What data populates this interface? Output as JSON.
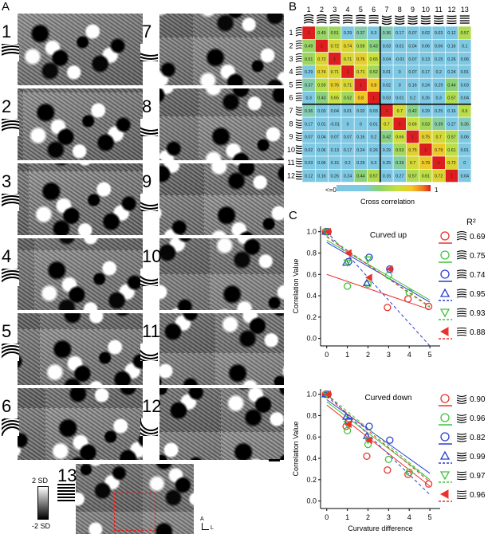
{
  "panel_labels": {
    "a": "A",
    "b": "B",
    "c": "C"
  },
  "maps": [
    {
      "n": "1"
    },
    {
      "n": "2"
    },
    {
      "n": "3"
    },
    {
      "n": "4"
    },
    {
      "n": "5"
    },
    {
      "n": "6"
    },
    {
      "n": "7"
    },
    {
      "n": "8"
    },
    {
      "n": "9"
    },
    {
      "n": "10"
    },
    {
      "n": "11"
    },
    {
      "n": "12"
    },
    {
      "n": "13"
    }
  ],
  "scale_bar": {
    "top": "2 SD",
    "bottom": "-2 SD"
  },
  "orientation": {
    "a": "A",
    "l": "L"
  },
  "matrix": {
    "col_labels": [
      "1",
      "2",
      "3",
      "4",
      "5",
      "6",
      "7",
      "8",
      "9",
      "10",
      "11",
      "12",
      "13"
    ],
    "row_labels": [
      "1",
      "2",
      "3",
      "4",
      "5",
      "6",
      "7",
      "8",
      "9",
      "10",
      "11",
      "12"
    ],
    "values": [
      [
        "1",
        "0.49",
        "0.51",
        "0.29",
        "0.37",
        "0.3",
        "0.36",
        "0.17",
        "0.07",
        "0.02",
        "0.03",
        "0.12",
        "0.57"
      ],
      [
        "0.49",
        "1",
        "0.72",
        "0.74",
        "0.59",
        "0.43",
        "0.03",
        "0.01",
        "0.04",
        "0.06",
        "0.06",
        "0.16",
        "0.1"
      ],
      [
        "0.51",
        "0.72",
        "1",
        "0.71",
        "0.76",
        "0.65",
        "0.04",
        "-0.01",
        "0.07",
        "0.13",
        "0.15",
        "0.26",
        "0.06"
      ],
      [
        "0.29",
        "0.74",
        "0.71",
        "1",
        "0.71",
        "0.52",
        "0.01",
        "0",
        "0.07",
        "0.17",
        "0.2",
        "0.24",
        "0.01"
      ],
      [
        "0.37",
        "0.59",
        "0.76",
        "0.71",
        "1",
        "0.8",
        "0.02",
        "0",
        "0.16",
        "0.24",
        "0.29",
        "0.44",
        "0.03"
      ],
      [
        "0.3",
        "0.43",
        "0.65",
        "0.52",
        "0.8",
        "1",
        "0.03",
        "0.01",
        "0.2",
        "0.26",
        "0.3",
        "0.57",
        "0.04"
      ],
      [
        "0.36",
        "0.03",
        "0.04",
        "0.01",
        "0.02",
        "0.03",
        "1",
        "0.7",
        "0.42",
        "0.29",
        "0.25",
        "0.16",
        "0.6"
      ],
      [
        "0.17",
        "0.01",
        "-0.01",
        "0",
        "0",
        "0.01",
        "0.7",
        "1",
        "0.66",
        "0.53",
        "0.39",
        "0.27",
        "0.35"
      ],
      [
        "0.07",
        "0.04",
        "0.07",
        "0.07",
        "0.16",
        "0.2",
        "0.42",
        "0.66",
        "1",
        "0.75",
        "0.7",
        "0.57",
        "0.06"
      ],
      [
        "0.02",
        "0.06",
        "0.13",
        "0.17",
        "0.24",
        "0.26",
        "0.29",
        "0.53",
        "0.75",
        "1",
        "0.79",
        "0.61",
        "0.01"
      ],
      [
        "0.03",
        "0.06",
        "0.15",
        "0.2",
        "0.29",
        "0.3",
        "0.25",
        "0.39",
        "0.7",
        "0.79",
        "1",
        "0.72",
        "0"
      ],
      [
        "0.12",
        "0.16",
        "0.26",
        "0.24",
        "0.44",
        "0.57",
        "0.16",
        "0.27",
        "0.57",
        "0.61",
        "0.72",
        "1",
        "0.04"
      ]
    ],
    "colorbar_min": "<=0",
    "colorbar_max": "1",
    "colorbar_label": "Cross correlation"
  },
  "chart_data": [
    {
      "type": "scatter",
      "title": "Curved up",
      "xlabel": "",
      "ylabel": "Correlation Value",
      "xlim": [
        -0.3,
        5.5
      ],
      "ylim": [
        -0.07,
        1.05
      ],
      "xticks": [
        "0",
        "1",
        "2",
        "3",
        "4",
        "5"
      ],
      "yticks": [
        "0.0",
        "0.2",
        "0.4",
        "0.6",
        "0.8",
        "1.0"
      ],
      "r2_header": "R²",
      "series": [
        {
          "color": "#e8332a",
          "marker": "circle",
          "r2": "0.69",
          "points": [
            [
              0,
              1.0
            ],
            [
              3,
              0.29
            ],
            [
              4,
              0.37
            ],
            [
              5,
              0.3
            ]
          ],
          "fit": [
            [
              0,
              0.6
            ],
            [
              5,
              0.27
            ]
          ],
          "dash": false
        },
        {
          "color": "#3ec43a",
          "marker": "circle",
          "r2": "0.75",
          "points": [
            [
              0,
              1.0
            ],
            [
              1,
              0.49
            ],
            [
              2,
              0.51
            ],
            [
              3,
              0.59
            ],
            [
              4,
              0.43
            ]
          ],
          "fit": [
            [
              0,
              0.92
            ],
            [
              5,
              0.36
            ]
          ],
          "dash": false
        },
        {
          "color": "#2a3fd0",
          "marker": "circle",
          "r2": "0.74",
          "points": [
            [
              0,
              1.0
            ],
            [
              1,
              0.72
            ],
            [
              2,
              0.76
            ],
            [
              3,
              0.65
            ]
          ],
          "fit": [
            [
              0,
              0.9
            ],
            [
              5,
              0.34
            ]
          ],
          "dash": false
        },
        {
          "color": "#2a3fd0",
          "marker": "triangle-up",
          "r2": "0.95",
          "points": [
            [
              0,
              1.0
            ],
            [
              1,
              0.71
            ],
            [
              2,
              0.52
            ]
          ],
          "fit": [
            [
              0,
              1.0
            ],
            [
              5,
              -0.07
            ]
          ],
          "dash": true
        },
        {
          "color": "#3ec43a",
          "marker": "triangle-down",
          "r2": "0.93",
          "points": [
            [
              0,
              1.0
            ],
            [
              1,
              0.71
            ],
            [
              2,
              0.74
            ]
          ],
          "fit": [
            [
              0,
              0.96
            ],
            [
              5,
              0.29
            ]
          ],
          "dash": true
        },
        {
          "color": "#e8332a",
          "marker": "triangle-filled",
          "r2": "0.88",
          "points": [
            [
              0,
              1.0
            ],
            [
              1,
              0.8
            ],
            [
              2,
              0.57
            ],
            [
              3,
              0.65
            ]
          ],
          "fit": [
            [
              0,
              0.95
            ],
            [
              5,
              0.3
            ]
          ],
          "dash": true
        }
      ]
    },
    {
      "type": "scatter",
      "title": "Curved down",
      "xlabel": "Curvature difference",
      "ylabel": "Correlation Value",
      "xlim": [
        -0.3,
        5.5
      ],
      "ylim": [
        -0.07,
        1.05
      ],
      "xticks": [
        "0",
        "1",
        "2",
        "3",
        "4",
        "5"
      ],
      "yticks": [
        "0.0",
        "0.2",
        "0.4",
        "0.6",
        "0.8",
        "1.0"
      ],
      "series": [
        {
          "color": "#e8332a",
          "marker": "circle",
          "r2": "0.90",
          "points": [
            [
              0,
              1.0
            ],
            [
              1,
              0.7
            ],
            [
              2,
              0.42
            ],
            [
              3,
              0.29
            ],
            [
              4,
              0.25
            ],
            [
              5,
              0.16
            ]
          ],
          "fit": [
            [
              0,
              0.9
            ],
            [
              5,
              0.14
            ]
          ],
          "dash": false
        },
        {
          "color": "#3ec43a",
          "marker": "circle",
          "r2": "0.96",
          "points": [
            [
              0,
              1.0
            ],
            [
              1,
              0.66
            ],
            [
              2,
              0.53
            ],
            [
              3,
              0.39
            ],
            [
              4,
              0.27
            ]
          ],
          "fit": [
            [
              0,
              0.93
            ],
            [
              5,
              0.2
            ]
          ],
          "dash": false
        },
        {
          "color": "#2a3fd0",
          "marker": "circle",
          "r2": "0.82",
          "points": [
            [
              0,
              1.0
            ],
            [
              1,
              0.75
            ],
            [
              2,
              0.7
            ],
            [
              3,
              0.57
            ]
          ],
          "fit": [
            [
              0,
              0.95
            ],
            [
              5,
              0.26
            ]
          ],
          "dash": false
        },
        {
          "color": "#2a3fd0",
          "marker": "triangle-up",
          "r2": "0.99",
          "points": [
            [
              0,
              1.0
            ],
            [
              1,
              0.79
            ],
            [
              2,
              0.61
            ]
          ],
          "fit": [
            [
              0,
              1.0
            ],
            [
              5,
              0.06
            ]
          ],
          "dash": true
        },
        {
          "color": "#3ec43a",
          "marker": "triangle-down",
          "r2": "0.97",
          "points": [
            [
              0,
              1.0
            ],
            [
              1,
              0.72
            ],
            [
              2,
              0.57
            ]
          ],
          "fit": [
            [
              0,
              1.0
            ],
            [
              5,
              0.2
            ]
          ],
          "dash": true
        },
        {
          "color": "#e8332a",
          "marker": "triangle-filled",
          "r2": "0.96",
          "points": [
            [
              0,
              1.0
            ],
            [
              1,
              0.72
            ],
            [
              2,
              0.57
            ]
          ],
          "fit": [
            [
              0,
              0.98
            ],
            [
              5,
              0.18
            ]
          ],
          "dash": true
        }
      ]
    }
  ]
}
